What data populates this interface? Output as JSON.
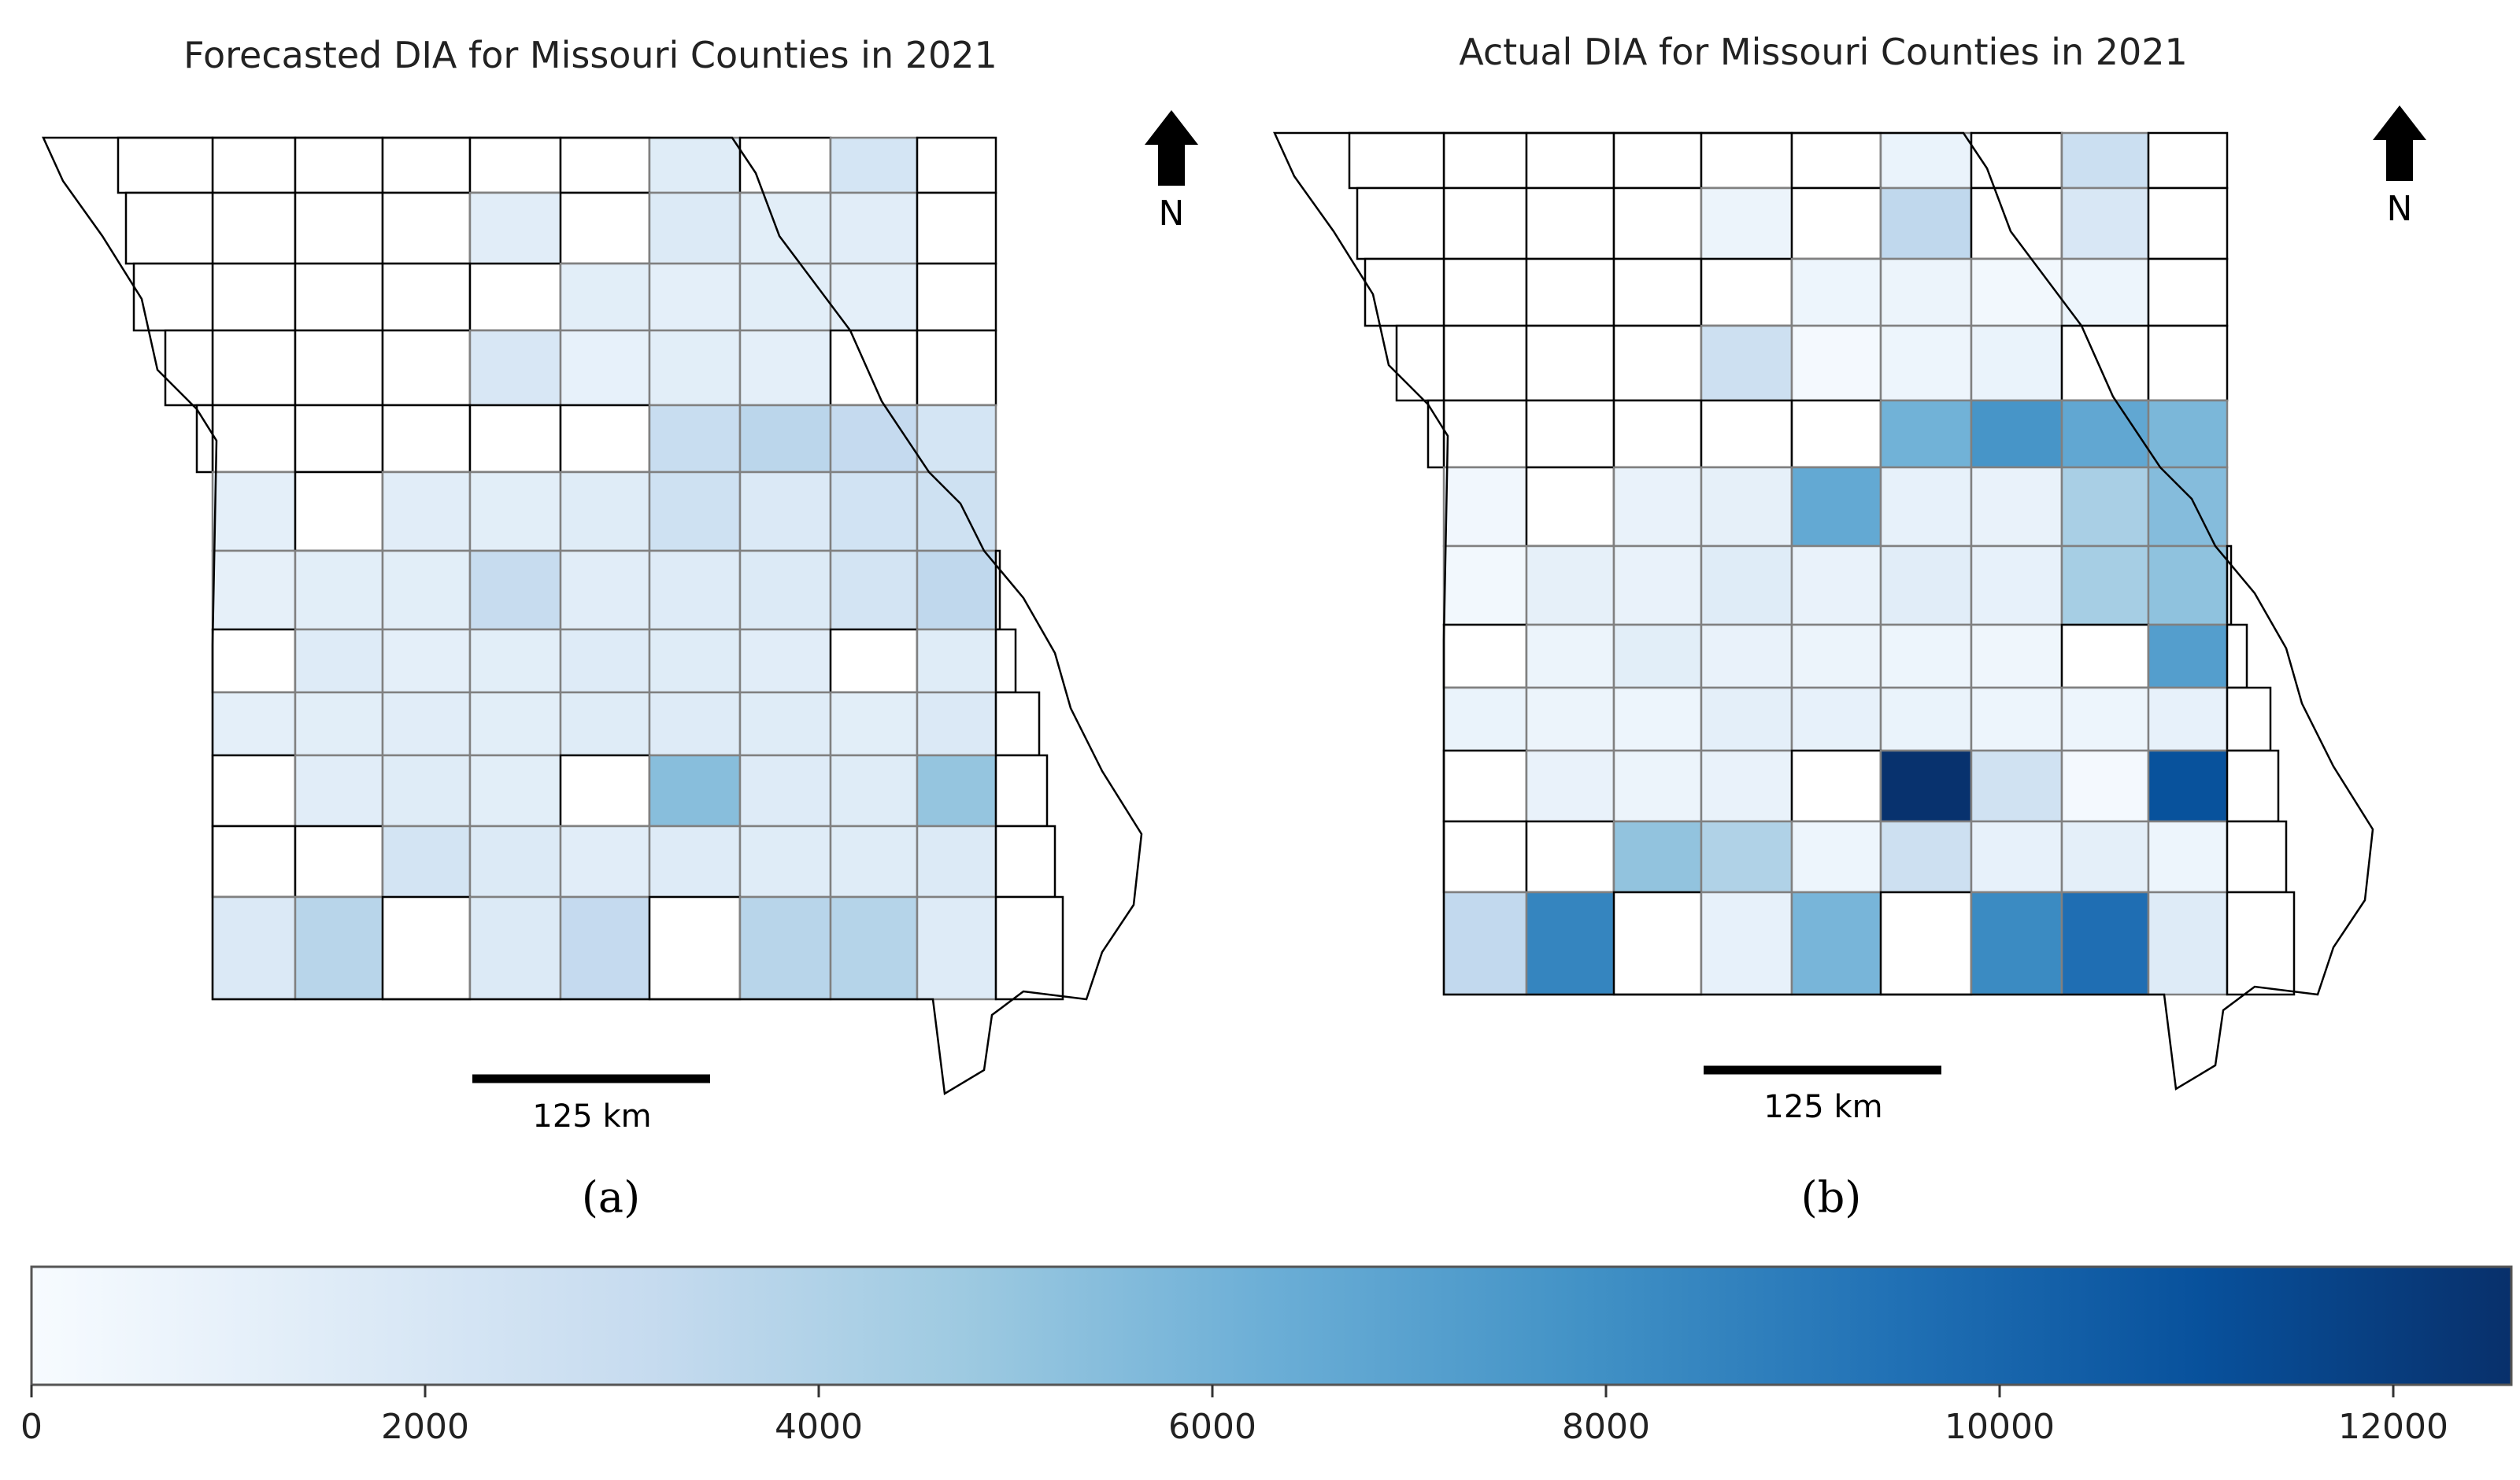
{
  "panels": [
    {
      "id": "a",
      "title": "Forecasted DIA for Missouri Counties in 2021",
      "caption": "(a)",
      "scale_label": "125 km",
      "north_label": "N",
      "grid_values": [
        [
          null,
          null,
          null,
          null,
          null,
          1500,
          null,
          2200,
          null
        ],
        [
          null,
          null,
          null,
          1400,
          null,
          1700,
          1300,
          1400,
          null
        ],
        [
          null,
          null,
          null,
          null,
          1300,
          1200,
          1300,
          1200,
          null
        ],
        [
          null,
          null,
          null,
          2000,
          1000,
          1300,
          1200,
          null,
          null
        ],
        [
          null,
          null,
          null,
          null,
          null,
          3000,
          3600,
          3200,
          2200
        ],
        [
          1200,
          null,
          1400,
          1300,
          1500,
          2600,
          1800,
          2400,
          2600
        ],
        [
          1100,
          1300,
          1300,
          3100,
          1400,
          1600,
          1700,
          2300,
          3400
        ],
        [
          null,
          1600,
          1200,
          1300,
          1600,
          1500,
          1400,
          null,
          1500
        ],
        [
          1200,
          1300,
          1400,
          1300,
          1500,
          1600,
          1500,
          1300,
          1800
        ],
        [
          null,
          1400,
          1500,
          1300,
          null,
          5400,
          1600,
          1500,
          5000
        ],
        [
          null,
          null,
          2300,
          1700,
          1400,
          1600,
          1500,
          1500,
          1700
        ],
        [
          1800,
          3700,
          null,
          1700,
          3200,
          null,
          3700,
          3800,
          1600
        ]
      ]
    },
    {
      "id": "b",
      "title": "Actual DIA for Missouri Counties in 2021",
      "caption": "(b)",
      "scale_label": "125 km",
      "north_label": "N",
      "grid_values": [
        [
          null,
          null,
          null,
          null,
          null,
          800,
          null,
          2800,
          null
        ],
        [
          null,
          null,
          null,
          700,
          null,
          3400,
          null,
          2000,
          null
        ],
        [
          null,
          null,
          null,
          null,
          600,
          700,
          300,
          600,
          null
        ],
        [
          null,
          null,
          null,
          2700,
          200,
          600,
          800,
          null,
          null
        ],
        [
          null,
          null,
          null,
          null,
          null,
          6100,
          7700,
          6700,
          5800
        ],
        [
          400,
          null,
          900,
          1100,
          6600,
          1000,
          900,
          4300,
          5500
        ],
        [
          300,
          1100,
          900,
          1500,
          900,
          1400,
          1000,
          4400,
          5200
        ],
        [
          null,
          700,
          1300,
          900,
          700,
          600,
          500,
          null,
          7200
        ],
        [
          800,
          700,
          600,
          1200,
          1000,
          800,
          600,
          600,
          1000
        ],
        [
          null,
          900,
          700,
          900,
          null,
          12500,
          2500,
          200,
          11000
        ],
        [
          null,
          null,
          5100,
          4000,
          600,
          2700,
          1000,
          1200,
          600
        ],
        [
          3300,
          8500,
          null,
          1000,
          5900,
          null,
          8200,
          9600,
          1600
        ]
      ]
    }
  ],
  "colorbar": {
    "min": 0,
    "max": 12600,
    "ticks": [
      0,
      2000,
      4000,
      6000,
      8000,
      10000,
      12000
    ],
    "tick_labels": [
      "0",
      "2000",
      "4000",
      "6000",
      "8000",
      "10000",
      "12000"
    ],
    "colormap": "Blues",
    "stops": [
      "#f7fbff",
      "#deebf7",
      "#c6dbef",
      "#9ecae1",
      "#6baed6",
      "#4292c6",
      "#2171b5",
      "#08519c",
      "#08306b"
    ]
  },
  "colors": {
    "county_border_colored": "#808080",
    "county_border_blank": "#000000",
    "no_data_fill": "#ffffff"
  }
}
